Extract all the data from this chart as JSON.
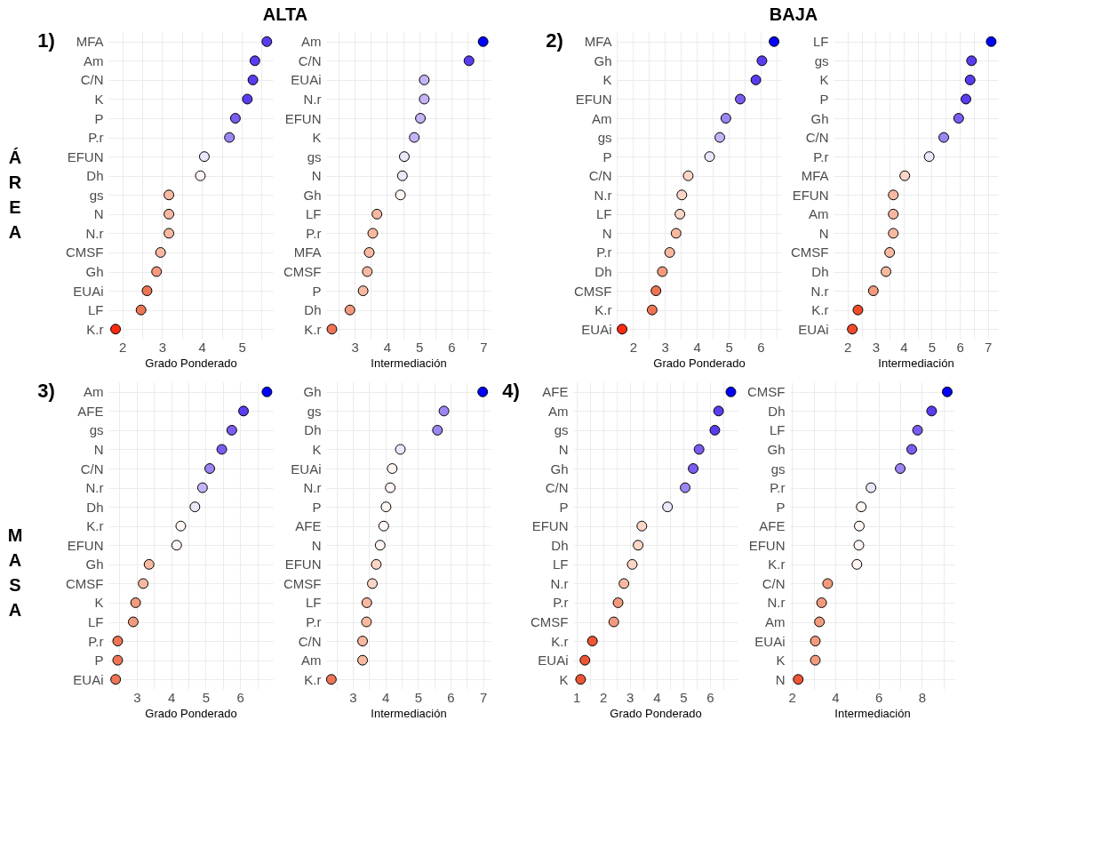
{
  "chart_data": [
    {
      "type": "scatter",
      "orientation": "horizontal",
      "title": "ALTA",
      "ylabel": "ÁREA",
      "annotations": [
        "1)"
      ],
      "xlabel": "Grado Ponderado",
      "marker": "circle",
      "grid": true,
      "categories": [
        "MFA",
        "Am",
        "C/N",
        "K",
        "P",
        "P.r",
        "EFUN",
        "Dh",
        "gs",
        "N",
        "N.r",
        "CMSF",
        "Gh",
        "EUAi",
        "LF",
        "K.r"
      ],
      "values": [
        5.63,
        5.33,
        5.28,
        5.14,
        4.84,
        4.69,
        4.06,
        3.96,
        3.17,
        3.17,
        3.17,
        2.96,
        2.86,
        2.62,
        2.47,
        1.83
      ],
      "colors": [
        "#5a3cf0",
        "#5a3cf0",
        "#5a3cf0",
        "#5a3cf0",
        "#7b5cf0",
        "#9d85f3",
        "#ece6fb",
        "#fff5f2",
        "#f8b9a0",
        "#f8b9a0",
        "#f8b9a0",
        "#f8b9a0",
        "#f39a7d",
        "#ee7455",
        "#ee7455",
        "#ff2a10"
      ],
      "xlim": [
        1.65,
        5.78
      ],
      "xticks": [
        2,
        {
          "value": 2.5,
          "label": null
        },
        3,
        {
          "value": 3.5,
          "label": null
        },
        4,
        {
          "value": 4.5,
          "label": null
        },
        5,
        {
          "value": 5.5,
          "label": null
        }
      ]
    },
    {
      "type": "scatter",
      "orientation": "horizontal",
      "xlabel": "Intermediación",
      "marker": "circle",
      "grid": true,
      "categories": [
        "Am",
        "C/N",
        "EUAi",
        "N.r",
        "EFUN",
        "K",
        "gs",
        "N",
        "Gh",
        "LF",
        "P.r",
        "MFA",
        "CMSF",
        "P",
        "Dh",
        "K.r"
      ],
      "values": [
        6.99,
        6.55,
        5.16,
        5.16,
        5.04,
        4.85,
        4.54,
        4.48,
        4.42,
        3.69,
        3.56,
        3.45,
        3.39,
        3.26,
        2.85,
        2.29
      ],
      "colors": [
        "#0000ff",
        "#5a3cf0",
        "#c4b3f7",
        "#c4b3f7",
        "#c4b3f7",
        "#c4b3f7",
        "#ece6fb",
        "#ece6fb",
        "#fff5f2",
        "#f8b9a0",
        "#f8b9a0",
        "#f8b9a0",
        "#f8b9a0",
        "#f8b9a0",
        "#f39a7d",
        "#ee7455"
      ],
      "xlim": [
        2.11,
        7.22
      ],
      "xticks": [
        {
          "value": 2.5,
          "label": null
        },
        3,
        {
          "value": 3.5,
          "label": null
        },
        4,
        {
          "value": 4.5,
          "label": null
        },
        5,
        {
          "value": 5.5,
          "label": null
        },
        6,
        {
          "value": 6.5,
          "label": null
        },
        7
      ]
    },
    {
      "type": "scatter",
      "orientation": "horizontal",
      "title": "BAJA",
      "annotations": [
        "2)"
      ],
      "xlabel": "Grado Ponderado",
      "marker": "circle",
      "grid": true,
      "categories": [
        "MFA",
        "Gh",
        "K",
        "EFUN",
        "Am",
        "gs",
        "P",
        "C/N",
        "N.r",
        "LF",
        "N",
        "P.r",
        "Dh",
        "CMSF",
        "K.r",
        "EUAi"
      ],
      "values": [
        6.42,
        6.04,
        5.85,
        5.36,
        4.91,
        4.72,
        4.4,
        3.73,
        3.53,
        3.47,
        3.35,
        3.15,
        2.92,
        2.72,
        2.6,
        1.66
      ],
      "colors": [
        "#0000ff",
        "#5a3cf0",
        "#5a3cf0",
        "#7b5cf0",
        "#9d85f3",
        "#c4b3f7",
        "#ece6fb",
        "#fbd5c5",
        "#fbd5c5",
        "#fbd5c5",
        "#f8b9a0",
        "#f8b9a0",
        "#f39a7d",
        "#ee7455",
        "#ee7455",
        "#ff2a10"
      ],
      "xlim": [
        1.49,
        6.64
      ],
      "xticks": [
        {
          "value": 1.5,
          "label": null
        },
        2,
        {
          "value": 2.5,
          "label": null
        },
        3,
        {
          "value": 3.5,
          "label": null
        },
        4,
        {
          "value": 4.5,
          "label": null
        },
        5,
        {
          "value": 5.5,
          "label": null
        },
        6,
        {
          "value": 6.5,
          "label": null
        }
      ]
    },
    {
      "type": "scatter",
      "orientation": "horizontal",
      "xlabel": "Intermediación",
      "marker": "circle",
      "grid": true,
      "categories": [
        "LF",
        "gs",
        "K",
        "P",
        "Gh",
        "C/N",
        "P.r",
        "MFA",
        "EFUN",
        "Am",
        "N",
        "CMSF",
        "Dh",
        "N.r",
        "K.r",
        "EUAi"
      ],
      "values": [
        7.12,
        6.42,
        6.37,
        6.22,
        5.96,
        5.43,
        4.91,
        4.04,
        3.63,
        3.63,
        3.63,
        3.5,
        3.37,
        2.92,
        2.37,
        2.17
      ],
      "colors": [
        "#0000ff",
        "#5a3cf0",
        "#5a3cf0",
        "#5a3cf0",
        "#7b5cf0",
        "#9d85f3",
        "#ece6fb",
        "#fbd5c5",
        "#f8b9a0",
        "#f8b9a0",
        "#f8b9a0",
        "#f8b9a0",
        "#f8b9a0",
        "#f39a7d",
        "#f04a2a",
        "#f04a2a"
      ],
      "xlim": [
        1.5,
        7.36
      ],
      "xticks": [
        2,
        {
          "value": 2.5,
          "label": null
        },
        3,
        {
          "value": 3.5,
          "label": null
        },
        4,
        {
          "value": 4.5,
          "label": null
        },
        5,
        {
          "value": 5.5,
          "label": null
        },
        6,
        {
          "value": 6.5,
          "label": null
        },
        7
      ]
    },
    {
      "type": "scatter",
      "orientation": "horizontal",
      "ylabel": "MASA",
      "annotations": [
        "3)"
      ],
      "xlabel": "Grado Ponderado",
      "marker": "circle",
      "grid": true,
      "categories": [
        "Am",
        "AFE",
        "gs",
        "N",
        "C/N",
        "N.r",
        "Dh",
        "K.r",
        "EFUN",
        "Gh",
        "CMSF",
        "K",
        "LF",
        "P.r",
        "P",
        "EUAi"
      ],
      "values": [
        6.78,
        6.1,
        5.76,
        5.47,
        5.12,
        4.91,
        4.69,
        4.28,
        4.16,
        3.36,
        3.19,
        2.97,
        2.9,
        2.45,
        2.45,
        2.39
      ],
      "colors": [
        "#0000ff",
        "#5a3cf0",
        "#7b5cf0",
        "#7b5cf0",
        "#9d85f3",
        "#c4b3f7",
        "#ece6fb",
        "#fff5f2",
        "#fff5f2",
        "#f8b9a0",
        "#f8b9a0",
        "#f39a7d",
        "#f39a7d",
        "#ee7455",
        "#ee7455",
        "#ee7455"
      ],
      "xlim": [
        2.18,
        6.95
      ],
      "xticks": [
        {
          "value": 2.5,
          "label": null
        },
        3,
        {
          "value": 3.5,
          "label": null
        },
        4,
        {
          "value": 4.5,
          "label": null
        },
        5,
        {
          "value": 5.5,
          "label": null
        },
        6,
        {
          "value": 6.5,
          "label": null
        }
      ]
    },
    {
      "type": "scatter",
      "orientation": "horizontal",
      "xlabel": "Intermediación",
      "marker": "circle",
      "grid": true,
      "categories": [
        "Gh",
        "gs",
        "Dh",
        "K",
        "EUAi",
        "N.r",
        "P",
        "AFE",
        "N",
        "EFUN",
        "CMSF",
        "LF",
        "P.r",
        "C/N",
        "Am",
        "K.r"
      ],
      "values": [
        6.99,
        5.8,
        5.6,
        4.46,
        4.21,
        4.15,
        4.02,
        3.95,
        3.84,
        3.72,
        3.6,
        3.43,
        3.42,
        3.3,
        3.3,
        2.34
      ],
      "colors": [
        "#0000ff",
        "#9d85f3",
        "#9d85f3",
        "#ece6fb",
        "#fff5f2",
        "#fff5f2",
        "#fff5f2",
        "#fff5f2",
        "#fff5f2",
        "#fbd5c5",
        "#fbd5c5",
        "#f8b9a0",
        "#f8b9a0",
        "#f8b9a0",
        "#f8b9a0",
        "#ee7455"
      ],
      "xlim": [
        2.18,
        7.23
      ],
      "xticks": [
        {
          "value": 2.5,
          "label": null
        },
        3,
        {
          "value": 3.5,
          "label": null
        },
        4,
        {
          "value": 4.5,
          "label": null
        },
        5,
        {
          "value": 5.5,
          "label": null
        },
        6,
        {
          "value": 6.5,
          "label": null
        },
        7
      ]
    },
    {
      "type": "scatter",
      "orientation": "horizontal",
      "annotations": [
        "4)"
      ],
      "xlabel": "Grado Ponderado",
      "marker": "circle",
      "grid": true,
      "categories": [
        "AFE",
        "Am",
        "gs",
        "N",
        "Gh",
        "C/N",
        "P",
        "EFUN",
        "Dh",
        "LF",
        "N.r",
        "P.r",
        "CMSF",
        "K.r",
        "EUAi",
        "K"
      ],
      "values": [
        6.78,
        6.32,
        6.18,
        5.59,
        5.37,
        5.07,
        4.41,
        3.45,
        3.31,
        3.09,
        2.78,
        2.56,
        2.4,
        1.6,
        1.32,
        1.16
      ],
      "colors": [
        "#0000ff",
        "#5a3cf0",
        "#5a3cf0",
        "#7b5cf0",
        "#7b5cf0",
        "#9d85f3",
        "#ece6fb",
        "#fbd5c5",
        "#fbd5c5",
        "#fbd5c5",
        "#f8b9a0",
        "#f39a7d",
        "#f39a7d",
        "#ee5535",
        "#ee5535",
        "#ee5535"
      ],
      "xlim": [
        0.88,
        7.03
      ],
      "xticks": [
        1,
        {
          "value": 1.5,
          "label": null
        },
        2,
        {
          "value": 2.5,
          "label": null
        },
        3,
        {
          "value": 3.5,
          "label": null
        },
        4,
        {
          "value": 4.5,
          "label": null
        },
        5,
        {
          "value": 5.5,
          "label": null
        },
        6,
        {
          "value": 6.5,
          "label": null
        }
      ]
    },
    {
      "type": "scatter",
      "orientation": "horizontal",
      "xlabel": "Intermediación",
      "marker": "circle",
      "grid": true,
      "categories": [
        "CMSF",
        "Dh",
        "LF",
        "Gh",
        "gs",
        "P.r",
        "P",
        "AFE",
        "EFUN",
        "K.r",
        "C/N",
        "N.r",
        "Am",
        "EUAi",
        "K",
        "N"
      ],
      "values": [
        9.17,
        8.45,
        7.8,
        7.53,
        7.0,
        5.65,
        5.2,
        5.11,
        5.09,
        5.0,
        3.65,
        3.37,
        3.27,
        3.08,
        3.08,
        2.29
      ],
      "colors": [
        "#0000ff",
        "#5a3cf0",
        "#7b5cf0",
        "#7b5cf0",
        "#9d85f3",
        "#ece6fb",
        "#fff5f2",
        "#fff5f2",
        "#fff5f2",
        "#fff5f2",
        "#f39a7d",
        "#f39a7d",
        "#f39a7d",
        "#f39a7d",
        "#f39a7d",
        "#ee5535"
      ],
      "xlim": [
        1.91,
        9.5
      ],
      "xticks": [
        2,
        {
          "value": 3,
          "label": null
        },
        4,
        {
          "value": 5,
          "label": null
        },
        6,
        {
          "value": 7,
          "label": null
        },
        8,
        {
          "value": 9,
          "label": null
        }
      ]
    }
  ]
}
